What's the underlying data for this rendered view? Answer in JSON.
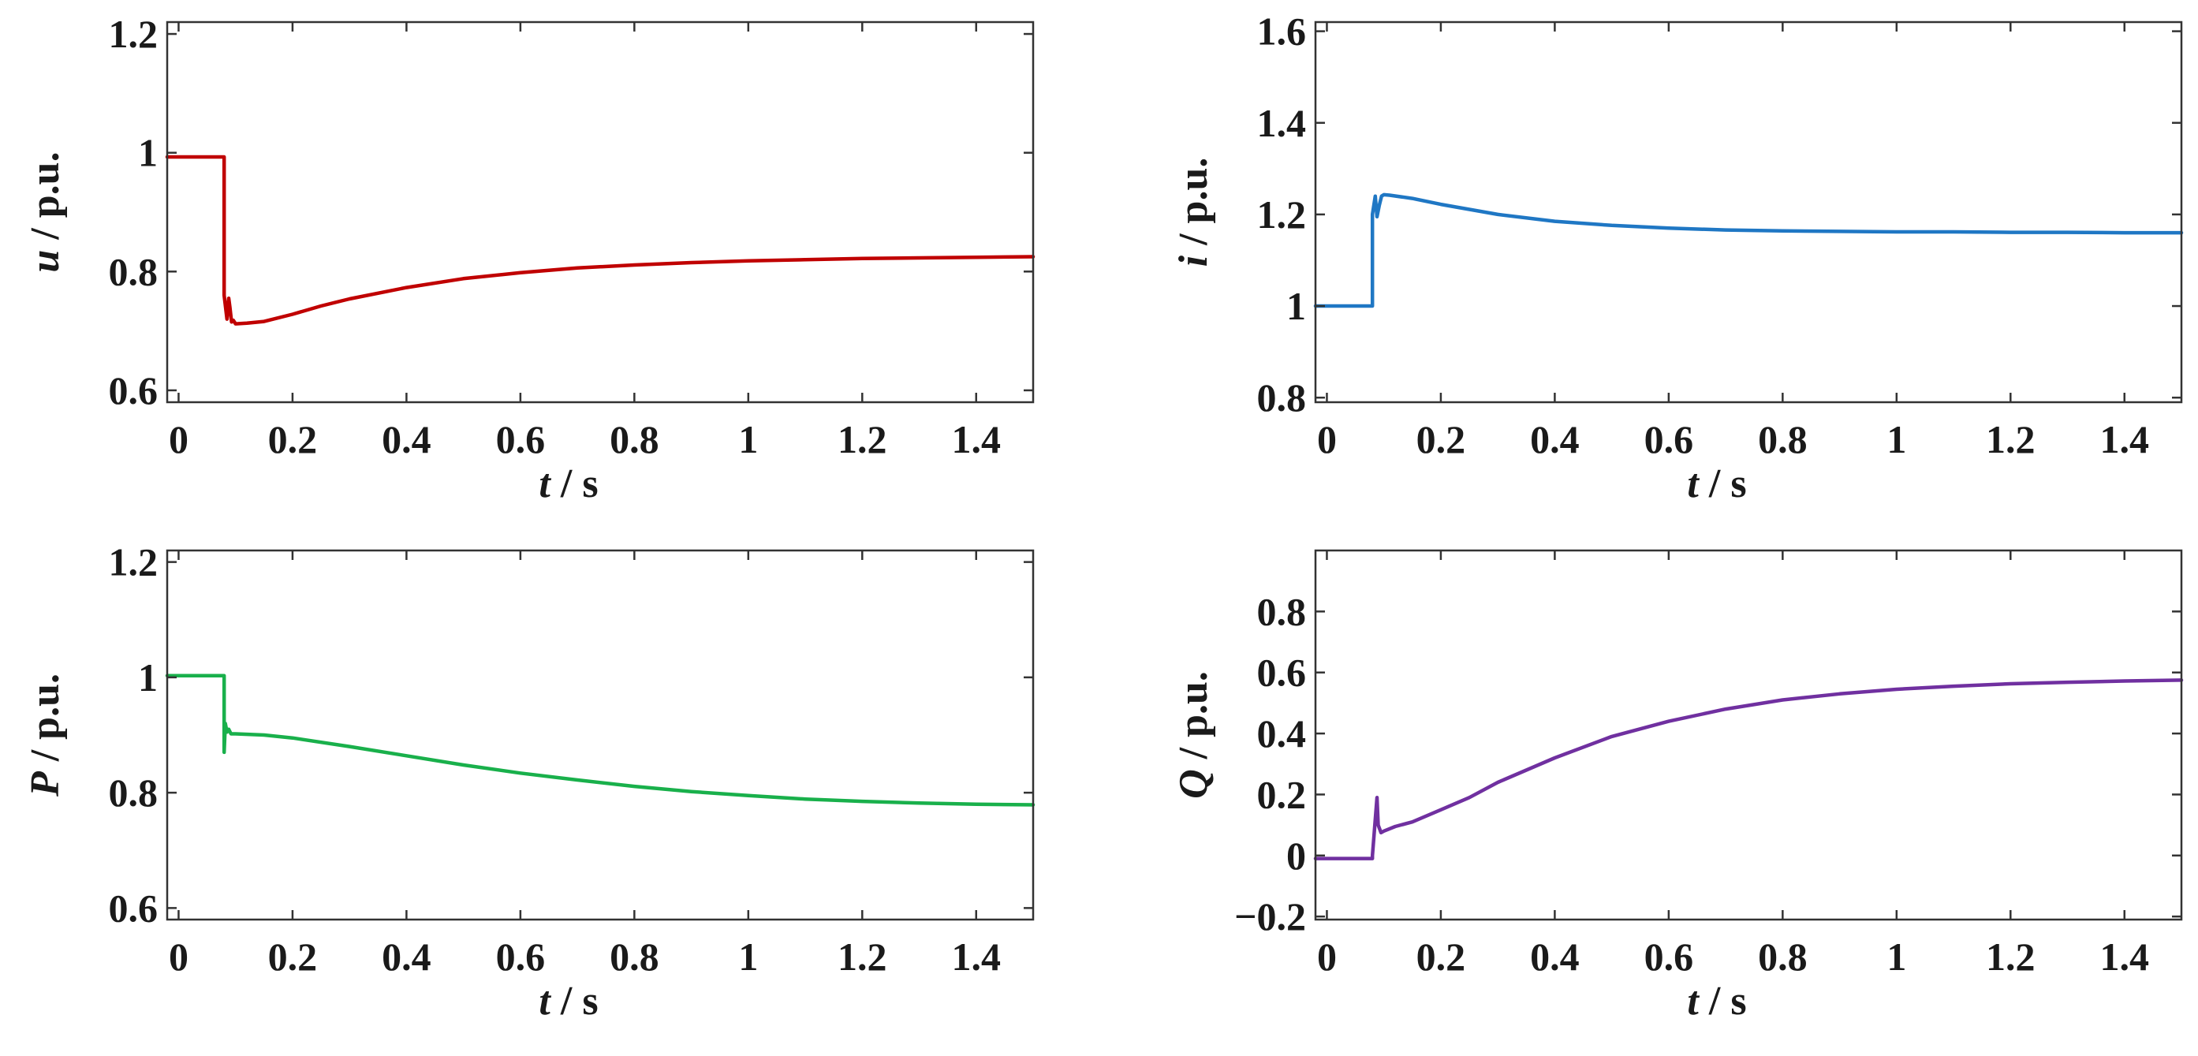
{
  "chart_data": [
    {
      "type": "line",
      "id": "voltage",
      "ylabel_symbol": "u",
      "ylabel_unit": " / p.u.",
      "xlabel_symbol": "t",
      "xlabel_unit": " / s",
      "xlim": [
        -0.02,
        1.5
      ],
      "ylim": [
        0.58,
        1.22
      ],
      "xticks": [
        0,
        0.2,
        0.4,
        0.6,
        0.8,
        1,
        1.2,
        1.4
      ],
      "xtick_labels": [
        "0",
        "0.2",
        "0.4",
        "0.6",
        "0.8",
        "1",
        "1.2",
        "1.4"
      ],
      "yticks": [
        0.6,
        0.8,
        1,
        1.2
      ],
      "ytick_labels": [
        "0.6",
        "0.8",
        "1",
        "1.2"
      ],
      "color": "#c00000",
      "series": [
        {
          "name": "u",
          "x": [
            -0.02,
            0.08,
            0.08,
            0.085,
            0.088,
            0.09,
            0.093,
            0.096,
            0.1,
            0.12,
            0.15,
            0.2,
            0.25,
            0.3,
            0.4,
            0.5,
            0.6,
            0.7,
            0.8,
            0.9,
            1.0,
            1.1,
            1.2,
            1.3,
            1.4,
            1.5
          ],
          "y": [
            0.993,
            0.993,
            0.76,
            0.72,
            0.755,
            0.74,
            0.715,
            0.718,
            0.712,
            0.713,
            0.716,
            0.728,
            0.742,
            0.754,
            0.773,
            0.788,
            0.798,
            0.806,
            0.811,
            0.815,
            0.818,
            0.82,
            0.822,
            0.823,
            0.824,
            0.825
          ]
        }
      ]
    },
    {
      "type": "line",
      "id": "current",
      "ylabel_symbol": "i",
      "ylabel_unit": " / p.u.",
      "xlabel_symbol": "t",
      "xlabel_unit": " / s",
      "xlim": [
        -0.02,
        1.5
      ],
      "ylim": [
        0.79,
        1.62
      ],
      "xticks": [
        0,
        0.2,
        0.4,
        0.6,
        0.8,
        1,
        1.2,
        1.4
      ],
      "xtick_labels": [
        "0",
        "0.2",
        "0.4",
        "0.6",
        "0.8",
        "1",
        "1.2",
        "1.4"
      ],
      "yticks": [
        0.8,
        1,
        1.2,
        1.4,
        1.6
      ],
      "ytick_labels": [
        "0.8",
        "1",
        "1.2",
        "1.4",
        "1.6"
      ],
      "color": "#1f77c4",
      "series": [
        {
          "name": "i",
          "x": [
            -0.02,
            0.08,
            0.08,
            0.085,
            0.088,
            0.092,
            0.096,
            0.1,
            0.11,
            0.15,
            0.2,
            0.3,
            0.4,
            0.5,
            0.6,
            0.7,
            0.8,
            0.9,
            1.0,
            1.1,
            1.2,
            1.3,
            1.4,
            1.5
          ],
          "y": [
            1.0,
            1.0,
            1.2,
            1.24,
            1.195,
            1.22,
            1.24,
            1.243,
            1.242,
            1.235,
            1.222,
            1.2,
            1.185,
            1.176,
            1.17,
            1.166,
            1.164,
            1.163,
            1.162,
            1.162,
            1.161,
            1.161,
            1.16,
            1.16
          ]
        }
      ]
    },
    {
      "type": "line",
      "id": "active-power",
      "ylabel_symbol": "P",
      "ylabel_unit": " / p.u.",
      "xlabel_symbol": "t",
      "xlabel_unit": " / s",
      "xlim": [
        -0.02,
        1.5
      ],
      "ylim": [
        0.58,
        1.22
      ],
      "xticks": [
        0,
        0.2,
        0.4,
        0.6,
        0.8,
        1,
        1.2,
        1.4
      ],
      "xtick_labels": [
        "0",
        "0.2",
        "0.4",
        "0.6",
        "0.8",
        "1",
        "1.2",
        "1.4"
      ],
      "yticks": [
        0.6,
        0.8,
        1,
        1.2
      ],
      "ytick_labels": [
        "0.6",
        "0.8",
        "1",
        "1.2"
      ],
      "color": "#19b04b",
      "series": [
        {
          "name": "P",
          "x": [
            -0.02,
            0.08,
            0.08,
            0.082,
            0.085,
            0.088,
            0.092,
            0.1,
            0.15,
            0.2,
            0.3,
            0.4,
            0.5,
            0.6,
            0.7,
            0.8,
            0.9,
            1.0,
            1.1,
            1.2,
            1.3,
            1.4,
            1.5
          ],
          "y": [
            1.003,
            1.003,
            0.87,
            0.92,
            0.905,
            0.91,
            0.902,
            0.902,
            0.9,
            0.895,
            0.88,
            0.864,
            0.848,
            0.834,
            0.822,
            0.811,
            0.802,
            0.795,
            0.789,
            0.785,
            0.782,
            0.78,
            0.779
          ]
        }
      ]
    },
    {
      "type": "line",
      "id": "reactive-power",
      "ylabel_symbol": "Q",
      "ylabel_unit": " / p.u.",
      "xlabel_symbol": "t",
      "xlabel_unit": " / s",
      "xlim": [
        -0.02,
        1.5
      ],
      "ylim": [
        -0.21,
        1.0
      ],
      "xticks": [
        0,
        0.2,
        0.4,
        0.6,
        0.8,
        1,
        1.2,
        1.4
      ],
      "xtick_labels": [
        "0",
        "0.2",
        "0.4",
        "0.6",
        "0.8",
        "1",
        "1.2",
        "1.4"
      ],
      "yticks": [
        -0.2,
        0,
        0.2,
        0.4,
        0.6,
        0.8
      ],
      "ytick_labels": [
        "−0.2",
        "0",
        "0.2",
        "0.4",
        "0.6",
        "0.8"
      ],
      "color": "#7030a0",
      "series": [
        {
          "name": "Q",
          "x": [
            -0.02,
            0.08,
            0.08,
            0.088,
            0.09,
            0.095,
            0.1,
            0.12,
            0.15,
            0.2,
            0.25,
            0.3,
            0.4,
            0.5,
            0.6,
            0.7,
            0.8,
            0.9,
            1.0,
            1.1,
            1.2,
            1.3,
            1.4,
            1.5
          ],
          "y": [
            -0.01,
            -0.01,
            0.0,
            0.19,
            0.1,
            0.075,
            0.08,
            0.095,
            0.11,
            0.15,
            0.19,
            0.24,
            0.32,
            0.39,
            0.44,
            0.48,
            0.51,
            0.53,
            0.545,
            0.555,
            0.563,
            0.568,
            0.572,
            0.575
          ]
        }
      ]
    }
  ]
}
